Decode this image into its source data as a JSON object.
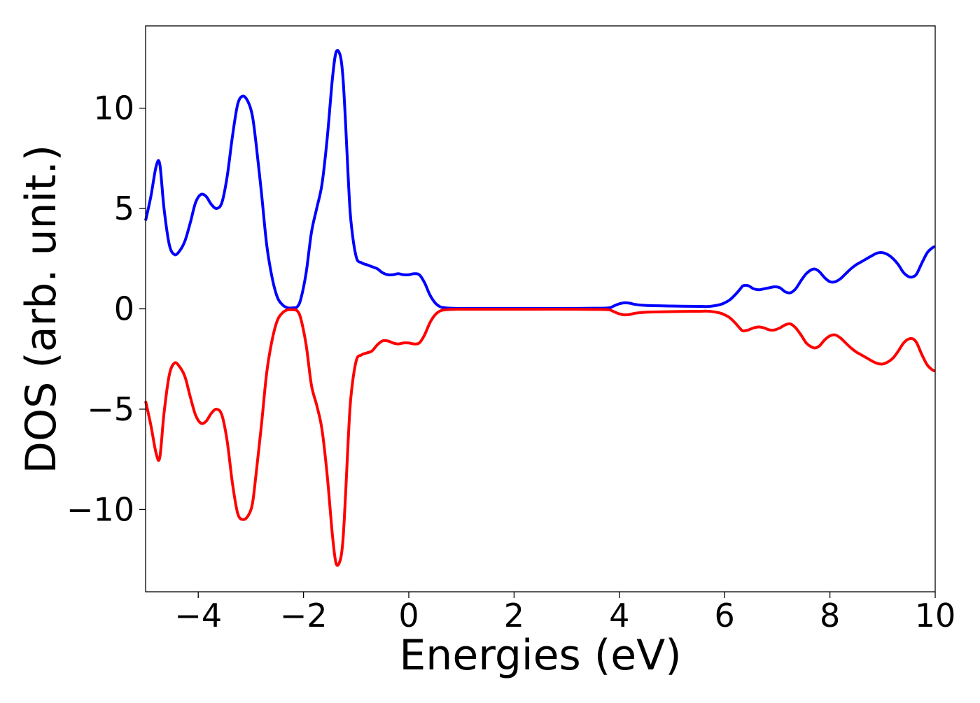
{
  "chart_data": {
    "type": "line",
    "title": "",
    "xlabel": "Energies (eV)",
    "ylabel": "DOS (arb. unit.)",
    "xlim": [
      -5,
      10
    ],
    "ylim": [
      -14.1,
      14.1
    ],
    "grid": false,
    "legend": "none",
    "xticks": [
      -4,
      -2,
      0,
      2,
      4,
      6,
      8,
      10
    ],
    "xtick_labels": [
      "−4",
      "−2",
      "0",
      "2",
      "4",
      "6",
      "8",
      "10"
    ],
    "yticks": [
      -10,
      -5,
      0,
      5,
      10
    ],
    "ytick_labels": [
      "−10",
      "−5",
      "0",
      "5",
      "10"
    ],
    "series": [
      {
        "color": "#0000ff",
        "x": [
          -5.0,
          -4.9,
          -4.8,
          -4.73,
          -4.65,
          -4.55,
          -4.45,
          -4.35,
          -4.25,
          -4.15,
          -4.05,
          -3.95,
          -3.85,
          -3.75,
          -3.65,
          -3.55,
          -3.45,
          -3.35,
          -3.25,
          -3.15,
          -3.05,
          -2.97,
          -2.9,
          -2.8,
          -2.7,
          -2.6,
          -2.5,
          -2.4,
          -2.3,
          -2.2,
          -2.12,
          -2.05,
          -1.95,
          -1.85,
          -1.75,
          -1.65,
          -1.55,
          -1.45,
          -1.38,
          -1.3,
          -1.25,
          -1.2,
          -1.15,
          -1.1,
          -1.0,
          -0.9,
          -0.8,
          -0.7,
          -0.6,
          -0.5,
          -0.4,
          -0.3,
          -0.2,
          -0.1,
          0.0,
          0.1,
          0.2,
          0.3,
          0.4,
          0.5,
          0.6,
          0.7,
          0.8,
          0.9,
          1.0,
          1.5,
          2.0,
          2.5,
          3.0,
          3.5,
          3.8,
          3.9,
          4.0,
          4.1,
          4.2,
          4.3,
          4.5,
          5.0,
          5.5,
          5.7,
          5.9,
          6.0,
          6.1,
          6.2,
          6.3,
          6.35,
          6.45,
          6.55,
          6.65,
          6.75,
          6.85,
          6.95,
          7.05,
          7.15,
          7.25,
          7.35,
          7.45,
          7.55,
          7.65,
          7.72,
          7.8,
          7.9,
          8.0,
          8.1,
          8.2,
          8.3,
          8.4,
          8.5,
          8.6,
          8.7,
          8.8,
          8.9,
          9.0,
          9.1,
          9.2,
          9.3,
          9.4,
          9.5,
          9.58,
          9.65,
          9.75,
          9.85,
          9.95,
          10.0
        ],
        "y": [
          4.4,
          5.6,
          7.1,
          7.2,
          5.0,
          3.2,
          2.7,
          2.9,
          3.4,
          4.3,
          5.3,
          5.7,
          5.6,
          5.2,
          5.0,
          5.3,
          6.6,
          8.6,
          10.2,
          10.6,
          10.3,
          9.6,
          8.2,
          5.8,
          3.2,
          1.6,
          0.6,
          0.2,
          0.05,
          0.05,
          0.1,
          0.5,
          1.8,
          3.8,
          5.0,
          6.2,
          8.5,
          11.5,
          12.8,
          12.6,
          11.5,
          9.2,
          6.5,
          4.4,
          2.6,
          2.3,
          2.2,
          2.1,
          2.0,
          1.8,
          1.7,
          1.7,
          1.75,
          1.7,
          1.7,
          1.75,
          1.7,
          1.3,
          0.7,
          0.3,
          0.1,
          0.05,
          0.03,
          0.02,
          0.02,
          0.02,
          0.02,
          0.02,
          0.02,
          0.03,
          0.05,
          0.15,
          0.25,
          0.3,
          0.28,
          0.22,
          0.17,
          0.14,
          0.12,
          0.12,
          0.2,
          0.3,
          0.45,
          0.7,
          1.0,
          1.15,
          1.15,
          1.0,
          0.95,
          1.0,
          1.05,
          1.1,
          1.05,
          0.85,
          0.8,
          1.0,
          1.4,
          1.75,
          1.95,
          1.98,
          1.85,
          1.55,
          1.35,
          1.35,
          1.5,
          1.75,
          2.0,
          2.2,
          2.35,
          2.5,
          2.65,
          2.78,
          2.8,
          2.7,
          2.5,
          2.2,
          1.8,
          1.6,
          1.6,
          1.75,
          2.3,
          2.8,
          3.05,
          3.1
        ]
      },
      {
        "color": "#ff0000",
        "x": [
          -5.0,
          -4.9,
          -4.8,
          -4.73,
          -4.65,
          -4.55,
          -4.45,
          -4.35,
          -4.25,
          -4.15,
          -4.05,
          -3.95,
          -3.85,
          -3.75,
          -3.65,
          -3.55,
          -3.45,
          -3.35,
          -3.25,
          -3.15,
          -3.05,
          -2.97,
          -2.9,
          -2.8,
          -2.7,
          -2.6,
          -2.5,
          -2.4,
          -2.3,
          -2.2,
          -2.12,
          -2.05,
          -1.95,
          -1.85,
          -1.75,
          -1.65,
          -1.55,
          -1.45,
          -1.38,
          -1.3,
          -1.25,
          -1.2,
          -1.15,
          -1.1,
          -1.0,
          -0.9,
          -0.8,
          -0.7,
          -0.6,
          -0.5,
          -0.4,
          -0.3,
          -0.2,
          -0.1,
          0.0,
          0.1,
          0.2,
          0.3,
          0.4,
          0.5,
          0.6,
          0.7,
          0.8,
          0.9,
          1.0,
          1.5,
          2.0,
          2.5,
          3.0,
          3.5,
          3.8,
          3.9,
          4.0,
          4.1,
          4.2,
          4.3,
          4.5,
          5.0,
          5.5,
          5.7,
          5.9,
          6.0,
          6.1,
          6.2,
          6.3,
          6.35,
          6.45,
          6.55,
          6.65,
          6.75,
          6.85,
          6.95,
          7.05,
          7.15,
          7.25,
          7.35,
          7.45,
          7.55,
          7.65,
          7.72,
          7.8,
          7.9,
          8.0,
          8.1,
          8.2,
          8.3,
          8.4,
          8.5,
          8.6,
          8.7,
          8.8,
          8.9,
          9.0,
          9.1,
          9.2,
          9.3,
          9.4,
          9.5,
          9.58,
          9.65,
          9.75,
          9.85,
          9.95,
          10.0
        ],
        "y": [
          -4.6,
          -5.8,
          -7.2,
          -7.4,
          -5.2,
          -3.3,
          -2.7,
          -2.9,
          -3.4,
          -4.4,
          -5.3,
          -5.7,
          -5.6,
          -5.2,
          -5.0,
          -5.3,
          -6.6,
          -8.7,
          -10.2,
          -10.5,
          -10.3,
          -9.7,
          -8.2,
          -5.8,
          -3.2,
          -1.6,
          -0.6,
          -0.2,
          -0.05,
          -0.05,
          -0.1,
          -0.5,
          -1.8,
          -3.8,
          -4.8,
          -6.0,
          -8.3,
          -11.3,
          -12.7,
          -12.5,
          -11.5,
          -9.2,
          -6.5,
          -4.4,
          -2.6,
          -2.3,
          -2.2,
          -2.1,
          -1.8,
          -1.6,
          -1.6,
          -1.7,
          -1.75,
          -1.7,
          -1.7,
          -1.75,
          -1.7,
          -1.3,
          -0.7,
          -0.3,
          -0.1,
          -0.05,
          -0.03,
          -0.02,
          -0.02,
          -0.02,
          -0.02,
          -0.02,
          -0.02,
          -0.03,
          -0.05,
          -0.15,
          -0.25,
          -0.3,
          -0.28,
          -0.22,
          -0.17,
          -0.14,
          -0.12,
          -0.12,
          -0.2,
          -0.3,
          -0.45,
          -0.7,
          -1.0,
          -1.1,
          -1.05,
          -0.95,
          -0.9,
          -0.95,
          -1.05,
          -1.05,
          -0.95,
          -0.8,
          -0.75,
          -0.95,
          -1.3,
          -1.7,
          -1.9,
          -1.95,
          -1.85,
          -1.55,
          -1.35,
          -1.3,
          -1.45,
          -1.7,
          -1.95,
          -2.15,
          -2.3,
          -2.45,
          -2.6,
          -2.72,
          -2.75,
          -2.65,
          -2.45,
          -2.1,
          -1.7,
          -1.5,
          -1.5,
          -1.7,
          -2.3,
          -2.8,
          -3.05,
          -3.1
        ]
      }
    ]
  }
}
